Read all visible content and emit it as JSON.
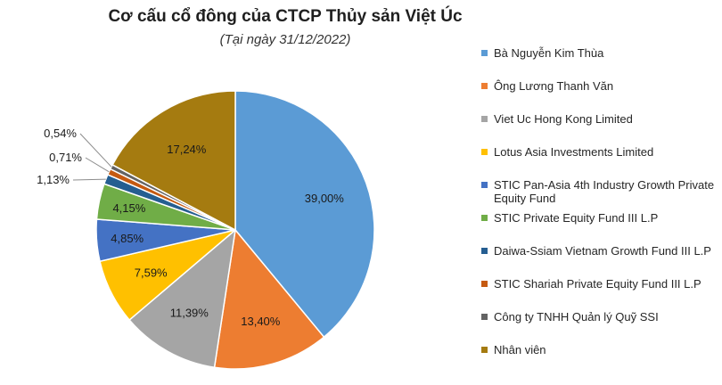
{
  "chart_data": {
    "type": "pie",
    "title": "Cơ cấu cổ đông của CTCP Thủy sản Việt Úc",
    "subtitle": "(Tại ngày 31/12/2022)",
    "legend_position": "right",
    "slices": [
      {
        "label": "Bà Nguyễn Kim Thùa",
        "value": 39.0,
        "display": "39,00%",
        "color": "#5b9bd5"
      },
      {
        "label": "Ông Lương Thanh Văn",
        "value": 13.4,
        "display": "13,40%",
        "color": "#ed7d31"
      },
      {
        "label": "Viet Uc Hong Kong Limited",
        "value": 11.39,
        "display": "11,39%",
        "color": "#a5a5a5"
      },
      {
        "label": "Lotus Asia Investments Limited",
        "value": 7.59,
        "display": "7,59%",
        "color": "#ffc000"
      },
      {
        "label": "STIC Pan-Asia 4th Industry Growth Private Equity Fund",
        "value": 4.85,
        "display": "4,85%",
        "color": "#4472c4"
      },
      {
        "label": "STIC Private Equity Fund III L.P",
        "value": 4.15,
        "display": "4,15%",
        "color": "#70ad47"
      },
      {
        "label": "Daiwa-Ssiam Vietnam Growth Fund III L.P",
        "value": 1.13,
        "display": "1,13%",
        "color": "#255e91"
      },
      {
        "label": "STIC Shariah Private Equity Fund III L.P",
        "value": 0.71,
        "display": "0,71%",
        "color": "#c55a11"
      },
      {
        "label": "Công ty TNHH Quản lý Quỹ SSI",
        "value": 0.54,
        "display": "0,54%",
        "color": "#636363"
      },
      {
        "label": "Nhân viên",
        "value": 17.24,
        "display": "17,24%",
        "color": "#a57b10"
      }
    ]
  }
}
